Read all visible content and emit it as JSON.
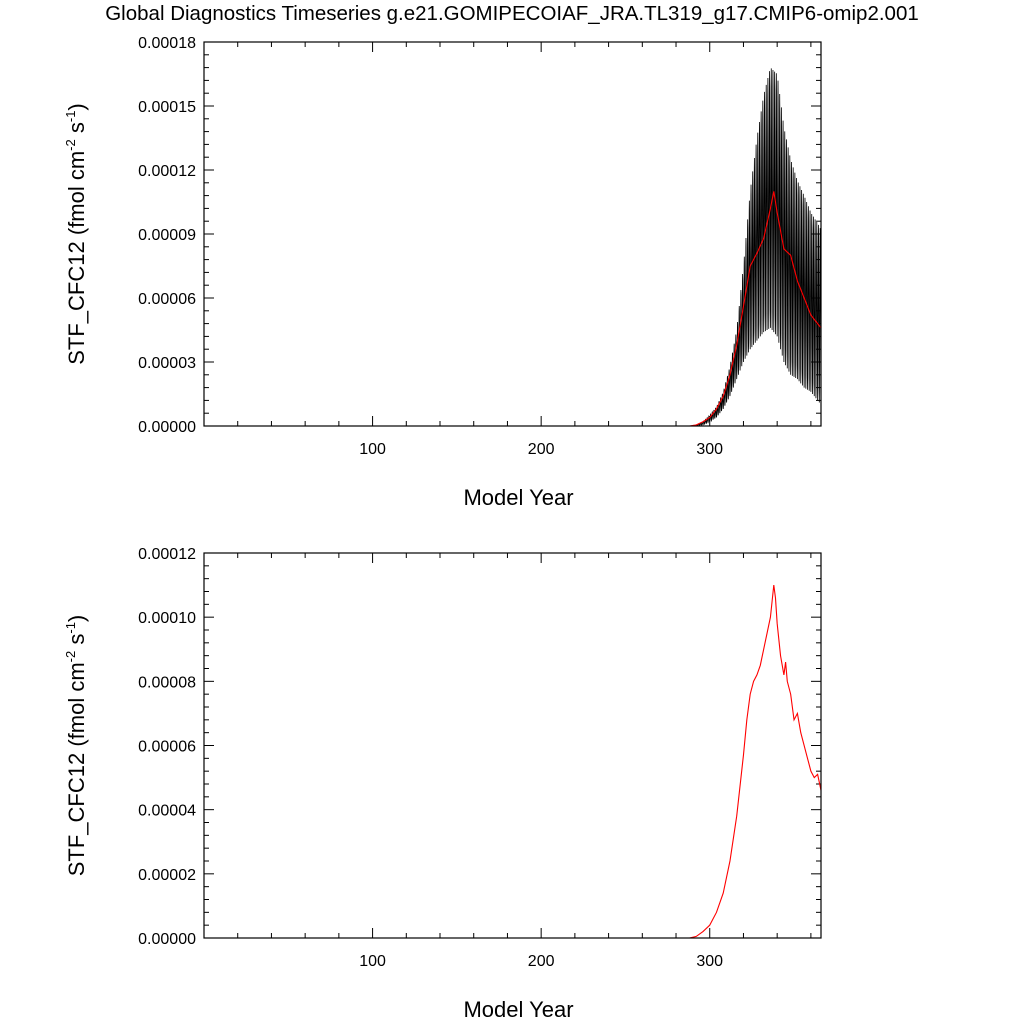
{
  "title": "Global Diagnostics Timeseries g.e21.GOMIPECOIAF_JRA.TL319_g17.CMIP6-omip2.001",
  "colors": {
    "monthly": "#000000",
    "annual": "#ff0000",
    "axes": "#000000"
  },
  "chart_data": [
    {
      "type": "line",
      "xlabel": "Model Year",
      "ylabel": {
        "base": "STF_CFC12 (fmol cm",
        "exp1": "-2",
        "mid": " s",
        "exp2": "-1",
        "end": ")"
      },
      "xlim": [
        0,
        366
      ],
      "ylim": [
        0,
        0.00018
      ],
      "xticks": [
        100,
        200,
        300
      ],
      "xtick_labels": [
        "100",
        "200",
        "300"
      ],
      "yticks": [
        0,
        3e-05,
        6e-05,
        9e-05,
        0.00012,
        0.00015,
        0.00018
      ],
      "ytick_labels": [
        "0.00000",
        "0.00003",
        "0.00006",
        "0.00009",
        "0.00012",
        "0.00015",
        "0.00018"
      ],
      "series": [
        {
          "kind": "monthly-envelope",
          "x": [
            0,
            288,
            292,
            296,
            300,
            304,
            308,
            312,
            316,
            320,
            324,
            328,
            332,
            336,
            340,
            344,
            348,
            352,
            356,
            360,
            364,
            366
          ],
          "ymax": [
            0,
            0,
            5e-07,
            2e-06,
            5e-06,
            9e-06,
            1.6e-05,
            2.8e-05,
            4.5e-05,
            7.5e-05,
            0.00011,
            0.000135,
            0.000155,
            0.000168,
            0.000165,
            0.00014,
            0.000125,
            0.000115,
            0.000108,
            0.0001,
            9.5e-05,
            9.2e-05
          ],
          "ymin": [
            0,
            0,
            0,
            5e-07,
            2e-06,
            4e-06,
            8e-06,
            1.4e-05,
            2.2e-05,
            3e-05,
            3.6e-05,
            4e-05,
            4.4e-05,
            4.6e-05,
            4.2e-05,
            3e-05,
            2.4e-05,
            2.2e-05,
            1.8e-05,
            1.6e-05,
            1.2e-05,
            1e-05
          ]
        },
        {
          "kind": "annual",
          "x": [
            0,
            288,
            292,
            296,
            300,
            304,
            308,
            312,
            316,
            320,
            324,
            328,
            332,
            336,
            338,
            340,
            344,
            348,
            352,
            356,
            360,
            364,
            366
          ],
          "y": [
            0,
            0,
            5e-07,
            2e-06,
            4e-06,
            8e-06,
            1.4e-05,
            2.4e-05,
            3.8e-05,
            5.6e-05,
            7.5e-05,
            8.1e-05,
            8.8e-05,
            0.000102,
            0.00011,
            0.0001,
            8.3e-05,
            8e-05,
            6.8e-05,
            6e-05,
            5.2e-05,
            4.8e-05,
            4.6e-05
          ]
        }
      ]
    },
    {
      "type": "line",
      "xlabel": "Model Year",
      "ylabel": {
        "base": "STF_CFC12 (fmol cm",
        "exp1": "-2",
        "mid": " s",
        "exp2": "-1",
        "end": ")"
      },
      "xlim": [
        0,
        366
      ],
      "ylim": [
        0,
        0.00012
      ],
      "xticks": [
        100,
        200,
        300
      ],
      "xtick_labels": [
        "100",
        "200",
        "300"
      ],
      "yticks": [
        0,
        2e-05,
        4e-05,
        6e-05,
        8e-05,
        0.0001,
        0.00012
      ],
      "ytick_labels": [
        "0.00000",
        "0.00002",
        "0.00004",
        "0.00006",
        "0.00008",
        "0.00010",
        "0.00012"
      ],
      "series": [
        {
          "kind": "annual",
          "x": [
            0,
            288,
            292,
            296,
            300,
            304,
            308,
            312,
            316,
            320,
            322,
            324,
            326,
            328,
            330,
            332,
            334,
            336,
            337,
            338,
            339,
            340,
            342,
            344,
            345,
            346,
            348,
            350,
            352,
            354,
            356,
            358,
            360,
            362,
            364,
            366
          ],
          "y": [
            0,
            0,
            5e-07,
            2e-06,
            4e-06,
            8e-06,
            1.4e-05,
            2.4e-05,
            3.8e-05,
            5.7e-05,
            6.8e-05,
            7.6e-05,
            8e-05,
            8.2e-05,
            8.5e-05,
            9e-05,
            9.5e-05,
            0.0001,
            0.000105,
            0.00011,
            0.000106,
            9.8e-05,
            8.8e-05,
            8.2e-05,
            8.6e-05,
            8e-05,
            7.6e-05,
            6.8e-05,
            7e-05,
            6.4e-05,
            6e-05,
            5.6e-05,
            5.2e-05,
            5e-05,
            5.1e-05,
            4.6e-05
          ]
        }
      ]
    }
  ]
}
